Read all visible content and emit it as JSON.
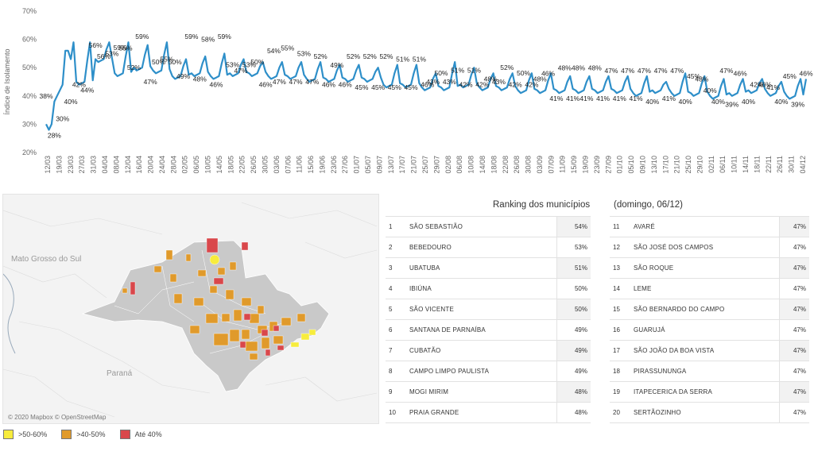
{
  "chart_data": {
    "type": "line",
    "ylabel": "Índice de Isolamento",
    "y_ticks": [
      "20%",
      "30%",
      "40%",
      "50%",
      "60%",
      "70%"
    ],
    "ylim": [
      20,
      70
    ],
    "color": "#2e8fc9",
    "x_ticks": [
      "12/03",
      "19/03",
      "23/03",
      "27/03",
      "31/03",
      "04/04",
      "08/04",
      "12/04",
      "16/04",
      "20/04",
      "24/04",
      "28/04",
      "02/05",
      "06/05",
      "10/05",
      "14/05",
      "18/05",
      "22/05",
      "26/05",
      "30/05",
      "03/06",
      "07/06",
      "11/06",
      "15/06",
      "19/06",
      "23/06",
      "27/06",
      "01/07",
      "05/07",
      "09/07",
      "13/07",
      "17/07",
      "21/07",
      "25/07",
      "29/07",
      "02/08",
      "06/08",
      "10/08",
      "14/08",
      "18/08",
      "22/08",
      "26/08",
      "30/08",
      "03/09",
      "07/09",
      "11/09",
      "15/09",
      "19/09",
      "23/09",
      "27/09",
      "01/10",
      "05/10",
      "09/10",
      "13/10",
      "17/10",
      "21/10",
      "25/10",
      "29/10",
      "02/11",
      "06/11",
      "10/11",
      "14/11",
      "18/11",
      "22/11",
      "26/11",
      "30/11",
      "04/12"
    ],
    "peaks": [
      59,
      59,
      59,
      59,
      58,
      59,
      53,
      54,
      55,
      53,
      52,
      52,
      52,
      52,
      51,
      51,
      50,
      51,
      51,
      48,
      52,
      50,
      48,
      48,
      48,
      48,
      47,
      47,
      47,
      47,
      47,
      45,
      48,
      47,
      46,
      46,
      46,
      45,
      46
    ],
    "troughs": [
      44,
      52,
      47,
      49,
      48,
      46,
      47,
      46,
      47,
      47,
      46,
      46,
      45,
      45,
      45,
      45,
      43,
      43,
      42,
      42,
      43,
      42,
      42,
      41,
      41,
      41,
      41,
      41,
      41,
      40,
      41,
      40,
      40,
      39,
      40,
      41,
      40,
      39
    ],
    "start_values": [
      30,
      28,
      30,
      38,
      40,
      42,
      44,
      56,
      56,
      53,
      59
    ],
    "end_value": 46,
    "labels": [
      {
        "i": 0,
        "v": "38%"
      },
      {
        "i": 1,
        "v": "28%"
      },
      {
        "i": 2,
        "v": "30%"
      },
      {
        "i": 3,
        "v": "40%"
      },
      {
        "i": 4,
        "v": "42%"
      },
      {
        "i": 5,
        "v": "44%"
      },
      {
        "i": 6,
        "v": "56%"
      },
      {
        "i": 7,
        "v": "56%"
      },
      {
        "i": 8,
        "v": "53%"
      },
      {
        "i": 9,
        "v": "59%"
      },
      {
        "i": 10,
        "v": "55%"
      },
      {
        "i": 11,
        "v": "52%"
      },
      {
        "i": 12,
        "v": "59%"
      },
      {
        "i": 13,
        "v": "47%"
      },
      {
        "i": 14,
        "v": "50%"
      },
      {
        "i": 15,
        "v": "55%"
      },
      {
        "i": 16,
        "v": "50%"
      },
      {
        "i": 17,
        "v": "49%"
      },
      {
        "i": 18,
        "v": "59%"
      },
      {
        "i": 19,
        "v": "48%"
      },
      {
        "i": 20,
        "v": "58%"
      },
      {
        "i": 21,
        "v": "46%"
      },
      {
        "i": 22,
        "v": "59%"
      },
      {
        "i": 23,
        "v": "53%"
      },
      {
        "i": 24,
        "v": "47%"
      },
      {
        "i": 25,
        "v": "53%"
      },
      {
        "i": 26,
        "v": "50%"
      },
      {
        "i": 27,
        "v": "46%"
      },
      {
        "i": 28,
        "v": "54%"
      },
      {
        "i": 29,
        "v": "47%"
      },
      {
        "i": 30,
        "v": "55%"
      },
      {
        "i": 31,
        "v": "47%"
      },
      {
        "i": 32,
        "v": "53%"
      },
      {
        "i": 33,
        "v": "47%"
      },
      {
        "i": 34,
        "v": "52%"
      },
      {
        "i": 35,
        "v": "46%"
      },
      {
        "i": 36,
        "v": "49%"
      },
      {
        "i": 37,
        "v": "46%"
      },
      {
        "i": 38,
        "v": "52%"
      },
      {
        "i": 39,
        "v": "45%"
      },
      {
        "i": 40,
        "v": "52%"
      },
      {
        "i": 41,
        "v": "45%"
      },
      {
        "i": 42,
        "v": "52%"
      },
      {
        "i": 43,
        "v": "45%"
      },
      {
        "i": 44,
        "v": "51%"
      },
      {
        "i": 45,
        "v": "45%"
      },
      {
        "i": 46,
        "v": "51%"
      },
      {
        "i": 47,
        "v": "46%"
      },
      {
        "i": 48,
        "v": "43%"
      },
      {
        "i": 49,
        "v": "50%"
      },
      {
        "i": 50,
        "v": "43%"
      },
      {
        "i": 51,
        "v": "51%"
      },
      {
        "i": 52,
        "v": "42%"
      },
      {
        "i": 53,
        "v": "51%"
      },
      {
        "i": 54,
        "v": "42%"
      },
      {
        "i": 55,
        "v": "48%"
      },
      {
        "i": 56,
        "v": "43%"
      },
      {
        "i": 57,
        "v": "52%"
      },
      {
        "i": 58,
        "v": "42%"
      },
      {
        "i": 59,
        "v": "50%"
      },
      {
        "i": 60,
        "v": "42%"
      },
      {
        "i": 61,
        "v": "48%"
      },
      {
        "i": 62,
        "v": "46%"
      },
      {
        "i": 63,
        "v": "41%"
      },
      {
        "i": 64,
        "v": "48%"
      },
      {
        "i": 65,
        "v": "41%"
      },
      {
        "i": 66,
        "v": "48%"
      },
      {
        "i": 67,
        "v": "41%"
      },
      {
        "i": 68,
        "v": "48%"
      },
      {
        "i": 69,
        "v": "41%"
      },
      {
        "i": 70,
        "v": "47%"
      },
      {
        "i": 71,
        "v": "41%"
      },
      {
        "i": 72,
        "v": "47%"
      },
      {
        "i": 73,
        "v": "41%"
      },
      {
        "i": 74,
        "v": "47%"
      },
      {
        "i": 75,
        "v": "40%"
      },
      {
        "i": 76,
        "v": "47%"
      },
      {
        "i": 77,
        "v": "41%"
      },
      {
        "i": 78,
        "v": "47%"
      },
      {
        "i": 79,
        "v": "40%"
      },
      {
        "i": 80,
        "v": "45%"
      },
      {
        "i": 81,
        "v": "48%"
      },
      {
        "i": 82,
        "v": "40%"
      },
      {
        "i": 83,
        "v": "40%"
      },
      {
        "i": 84,
        "v": "47%"
      },
      {
        "i": 85,
        "v": "39%"
      },
      {
        "i": 86,
        "v": "46%"
      },
      {
        "i": 87,
        "v": "40%"
      },
      {
        "i": 88,
        "v": "42%"
      },
      {
        "i": 89,
        "v": "46%"
      },
      {
        "i": 90,
        "v": "41%"
      },
      {
        "i": 91,
        "v": "40%"
      },
      {
        "i": 92,
        "v": "45%"
      },
      {
        "i": 93,
        "v": "39%"
      },
      {
        "i": 94,
        "v": "46%"
      }
    ]
  },
  "map": {
    "attribution": "© 2020 Mapbox © OpenStreetMap",
    "region_labels": [
      "Mato Grosso do Sul",
      "Paraná"
    ],
    "colors": {
      "yellow": "#f7ec3c",
      "orange": "#e09a2b",
      "red": "#d9474b",
      "gray": "#c9c9c9"
    }
  },
  "legend": [
    {
      "label": ">50-60%",
      "color": "#f7ec3c"
    },
    {
      "label": ">40-50%",
      "color": "#e09a2b"
    },
    {
      "label": "Até 40%",
      "color": "#d9474b"
    }
  ],
  "ranking": {
    "title": "Ranking dos municípios",
    "subtitle": "(domingo, 06/12)",
    "left": [
      {
        "n": "1",
        "name": "SÃO SEBASTIÃO",
        "val": "54%"
      },
      {
        "n": "2",
        "name": "BEBEDOURO",
        "val": "53%"
      },
      {
        "n": "3",
        "name": "UBATUBA",
        "val": "51%"
      },
      {
        "n": "4",
        "name": "IBIÚNA",
        "val": "50%"
      },
      {
        "n": "5",
        "name": "SÃO VICENTE",
        "val": "50%"
      },
      {
        "n": "6",
        "name": "SANTANA DE PARNAÍBA",
        "val": "49%"
      },
      {
        "n": "7",
        "name": "CUBATÃO",
        "val": "49%"
      },
      {
        "n": "8",
        "name": "CAMPO LIMPO PAULISTA",
        "val": "49%"
      },
      {
        "n": "9",
        "name": "MOGI MIRIM",
        "val": "48%"
      },
      {
        "n": "10",
        "name": "PRAIA GRANDE",
        "val": "48%"
      }
    ],
    "right": [
      {
        "n": "11",
        "name": "AVARÉ",
        "val": "47%"
      },
      {
        "n": "12",
        "name": "SÃO JOSÉ DOS CAMPOS",
        "val": "47%"
      },
      {
        "n": "13",
        "name": "SÃO ROQUE",
        "val": "47%"
      },
      {
        "n": "14",
        "name": "LEME",
        "val": "47%"
      },
      {
        "n": "15",
        "name": "SÃO BERNARDO DO CAMPO",
        "val": "47%"
      },
      {
        "n": "16",
        "name": "GUARUJÁ",
        "val": "47%"
      },
      {
        "n": "17",
        "name": "SÃO JOÃO DA BOA VISTA",
        "val": "47%"
      },
      {
        "n": "18",
        "name": "PIRASSUNUNGA",
        "val": "47%"
      },
      {
        "n": "19",
        "name": "ITAPECERICA DA SERRA",
        "val": "47%"
      },
      {
        "n": "20",
        "name": "SERTÃOZINHO",
        "val": "47%"
      }
    ]
  }
}
